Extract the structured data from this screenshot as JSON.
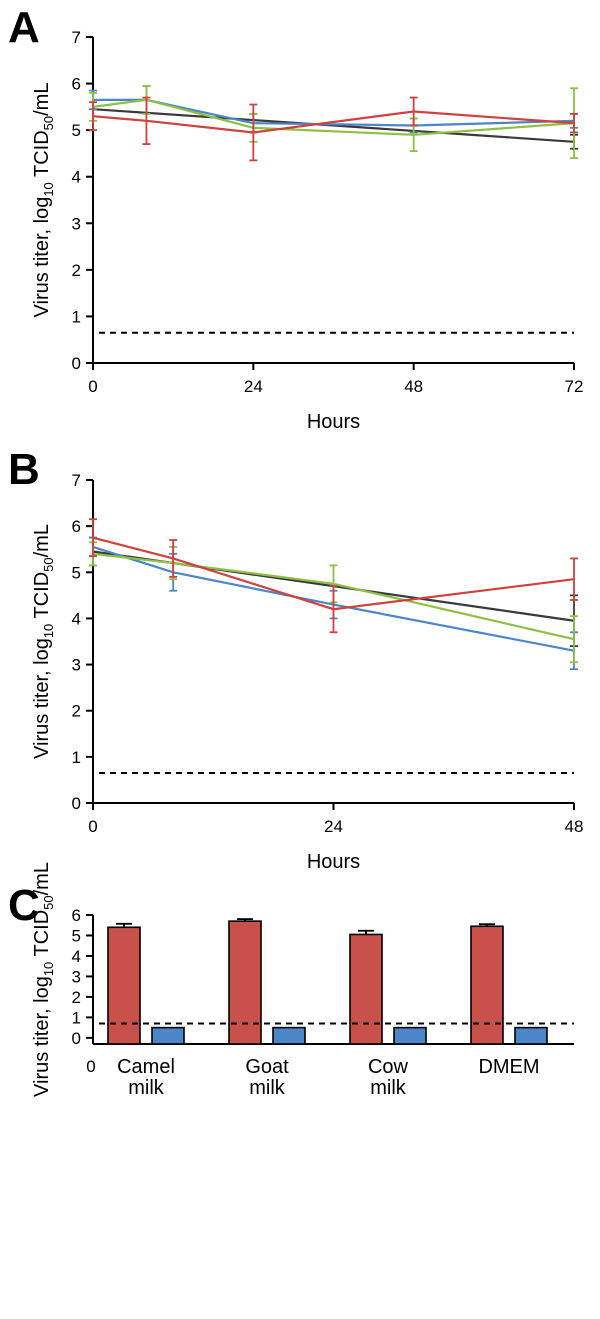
{
  "chart_data": [
    {
      "panel": "A",
      "type": "line",
      "xlabel": "Hours",
      "ylabel_main": "Virus titer, log",
      "ylabel_sub": "10",
      "ylabel_mid": " TCID",
      "ylabel_sub2": "50",
      "ylabel_end": "/mL",
      "xlim": [
        0,
        72
      ],
      "ylim": [
        0,
        7
      ],
      "xticks": [
        0,
        24,
        48,
        72
      ],
      "yticks": [
        0,
        1,
        2,
        3,
        4,
        5,
        6,
        7
      ],
      "detection_limit": 0.65,
      "series": [
        {
          "color": "#3a3a3a",
          "x": [
            0,
            72
          ],
          "y": [
            5.45,
            4.75
          ],
          "err": [
            0,
            0.15
          ]
        },
        {
          "color": "#4a86c8",
          "x": [
            0,
            8,
            24,
            48,
            72
          ],
          "y": [
            5.65,
            5.65,
            5.15,
            5.1,
            5.2
          ],
          "err": [
            0.2,
            0.3,
            0.2,
            0.15,
            0.15
          ]
        },
        {
          "color": "#8dc044",
          "x": [
            0,
            8,
            24,
            48,
            72
          ],
          "y": [
            5.5,
            5.65,
            5.05,
            4.9,
            5.15
          ],
          "err": [
            0.3,
            0.3,
            0.3,
            0.35,
            0.75
          ]
        },
        {
          "color": "#d0403c",
          "x": [
            0,
            8,
            24,
            48,
            72
          ],
          "y": [
            5.3,
            5.2,
            4.95,
            5.4,
            5.15
          ],
          "err": [
            0.3,
            0.5,
            0.6,
            0.3,
            0.2
          ]
        }
      ]
    },
    {
      "panel": "B",
      "type": "line",
      "xlabel": "Hours",
      "ylabel_main": "Virus titer, log",
      "ylabel_sub": "10",
      "ylabel_mid": " TCID",
      "ylabel_sub2": "50",
      "ylabel_end": "/mL",
      "xlim": [
        0,
        48
      ],
      "ylim": [
        0,
        7
      ],
      "xticks": [
        0,
        24,
        48
      ],
      "yticks": [
        0,
        1,
        2,
        3,
        4,
        5,
        6,
        7
      ],
      "detection_limit": 0.65,
      "series": [
        {
          "color": "#3a3a3a",
          "x": [
            0,
            48
          ],
          "y": [
            5.45,
            3.95
          ],
          "err": [
            0.3,
            0.55
          ]
        },
        {
          "color": "#4a86c8",
          "x": [
            0,
            8,
            24,
            48
          ],
          "y": [
            5.55,
            5.0,
            4.3,
            3.3
          ],
          "err": [
            0.2,
            0.4,
            0.3,
            0.4
          ]
        },
        {
          "color": "#8dc044",
          "x": [
            0,
            8,
            24,
            48
          ],
          "y": [
            5.4,
            5.2,
            4.75,
            3.55
          ],
          "err": [
            0.25,
            0.35,
            0.4,
            0.5
          ]
        },
        {
          "color": "#d0403c",
          "x": [
            0,
            8,
            24,
            48
          ],
          "y": [
            5.75,
            5.3,
            4.2,
            4.85
          ],
          "err": [
            0.4,
            0.4,
            0.5,
            0.45
          ]
        }
      ]
    },
    {
      "panel": "C",
      "type": "bar",
      "categories": [
        [
          "Camel",
          "milk"
        ],
        [
          "Goat",
          "milk"
        ],
        [
          "Cow",
          "milk"
        ],
        [
          "DMEM"
        ]
      ],
      "ylabel_main": "Virus titer, log",
      "ylabel_sub": "10",
      "ylabel_mid": " TCID",
      "ylabel_sub2": "50",
      "ylabel_end": "/mL",
      "ylim": [
        -0.3,
        6
      ],
      "yticks": [
        0,
        1,
        2,
        3,
        4,
        5,
        6
      ],
      "x_origin_label": "0",
      "detection_limit": 0.7,
      "series": [
        {
          "color": "#c9514b",
          "values": [
            5.4,
            5.7,
            5.05,
            5.45
          ],
          "err": [
            0.17,
            0.1,
            0.18,
            0.1
          ]
        },
        {
          "color": "#4a86c8",
          "values": [
            0.5,
            0.5,
            0.5,
            0.5
          ],
          "err": [
            0,
            0,
            0,
            0
          ]
        }
      ]
    }
  ]
}
